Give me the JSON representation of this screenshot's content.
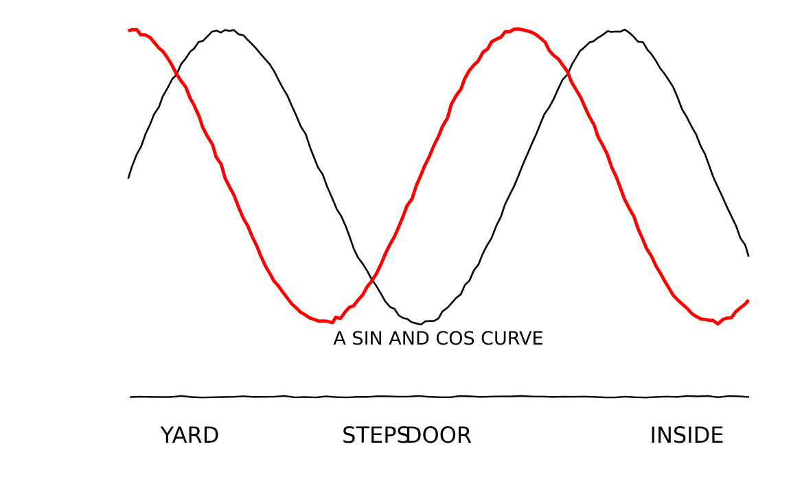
{
  "chart_data": {
    "type": "line",
    "style": "xkcd",
    "x_range": [
      0,
      10
    ],
    "ylim": [
      -1.25,
      1.05
    ],
    "grid": false,
    "legend": "none",
    "axes_visible": {
      "left": false,
      "top": false,
      "right": false,
      "bottom": true
    },
    "series": [
      {
        "function": "sin",
        "color": "#000000",
        "x": [
          0,
          0.5,
          1,
          1.5,
          2,
          2.5,
          3,
          3.5,
          4,
          4.5,
          5,
          5.5,
          6,
          6.5,
          7,
          7.5,
          8,
          8.5,
          9,
          9.5,
          10
        ],
        "y": [
          0,
          0.48,
          0.84,
          1.0,
          0.91,
          0.6,
          0.14,
          -0.35,
          -0.76,
          -0.98,
          -0.96,
          -0.71,
          -0.28,
          0.22,
          0.66,
          0.94,
          0.99,
          0.8,
          0.41,
          -0.08,
          -0.54
        ]
      },
      {
        "function": "cos",
        "color": "#ff0000",
        "x": [
          0,
          0.5,
          1,
          1.5,
          2,
          2.5,
          3,
          3.5,
          4,
          4.5,
          5,
          5.5,
          6,
          6.5,
          7,
          7.5,
          8,
          8.5,
          9,
          9.5,
          10
        ],
        "y": [
          1.0,
          0.88,
          0.54,
          0.07,
          -0.42,
          -0.8,
          -0.99,
          -0.94,
          -0.65,
          -0.21,
          0.28,
          0.71,
          0.96,
          0.98,
          0.75,
          0.35,
          -0.15,
          -0.6,
          -0.91,
          -1.0,
          -0.84
        ]
      }
    ],
    "xticks": [
      {
        "value": 1,
        "label": "YARD"
      },
      {
        "value": 4,
        "label": "STEPS"
      },
      {
        "value": 5,
        "label": "DOOR"
      },
      {
        "value": 9,
        "label": "INSIDE"
      }
    ],
    "annotation": {
      "text": "A SIN AND COS CURVE",
      "x": 5,
      "y": -1.15
    }
  }
}
